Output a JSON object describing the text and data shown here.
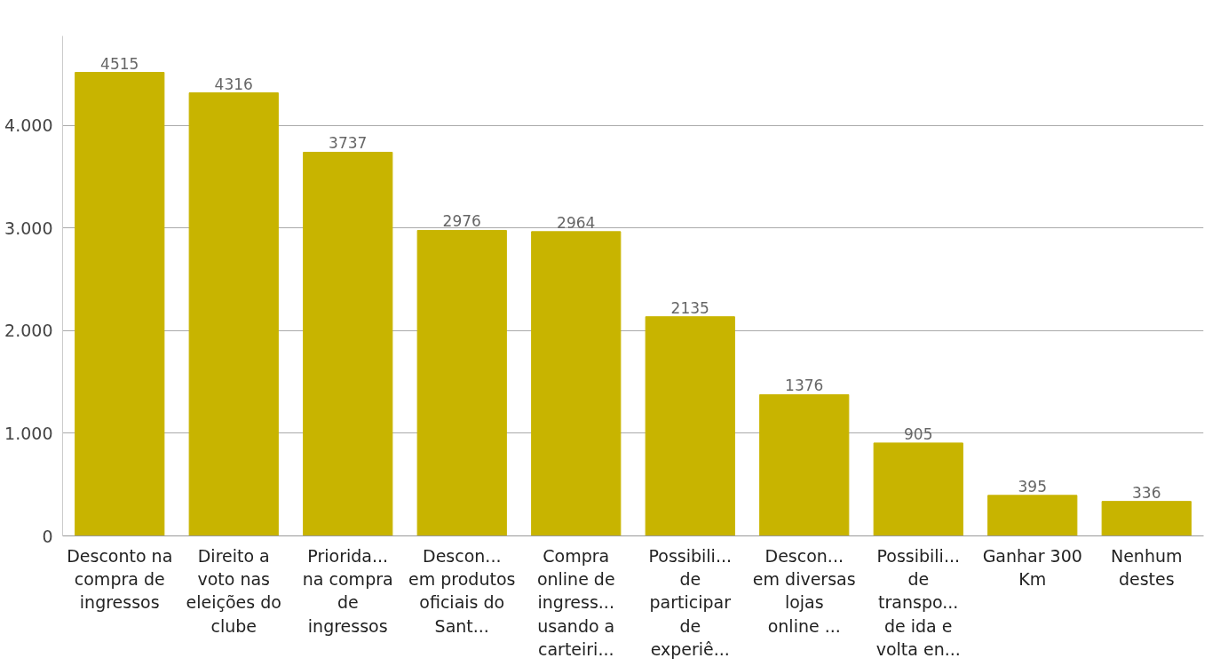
{
  "chart_data": {
    "type": "bar",
    "categories": [
      "Desconto na compra de ingressos",
      "Direito a voto nas eleições do clube",
      "Priorida... na compra de ingressos",
      "Descon... em produtos oficiais do Sant...",
      "Compra online de ingress... usando a carteiri...",
      "Possibili... de participar de experiê...",
      "Descon... em diversas lojas online ...",
      "Possibili... de transpo... de ida e volta en...",
      "Ganhar 300 Km",
      "Nenhum destes"
    ],
    "values": [
      4515,
      4316,
      3737,
      2976,
      2964,
      2135,
      1376,
      905,
      395,
      336
    ],
    "color": "#c8b400",
    "ylim": [
      0,
      4870
    ],
    "yticks": [
      {
        "value": 0,
        "label": "0"
      },
      {
        "value": 1000,
        "label": "1.000"
      },
      {
        "value": 2000,
        "label": "2.000"
      },
      {
        "value": 3000,
        "label": "3.000"
      },
      {
        "value": 4000,
        "label": "4.000"
      }
    ],
    "grid": "y",
    "data_labels": true
  }
}
